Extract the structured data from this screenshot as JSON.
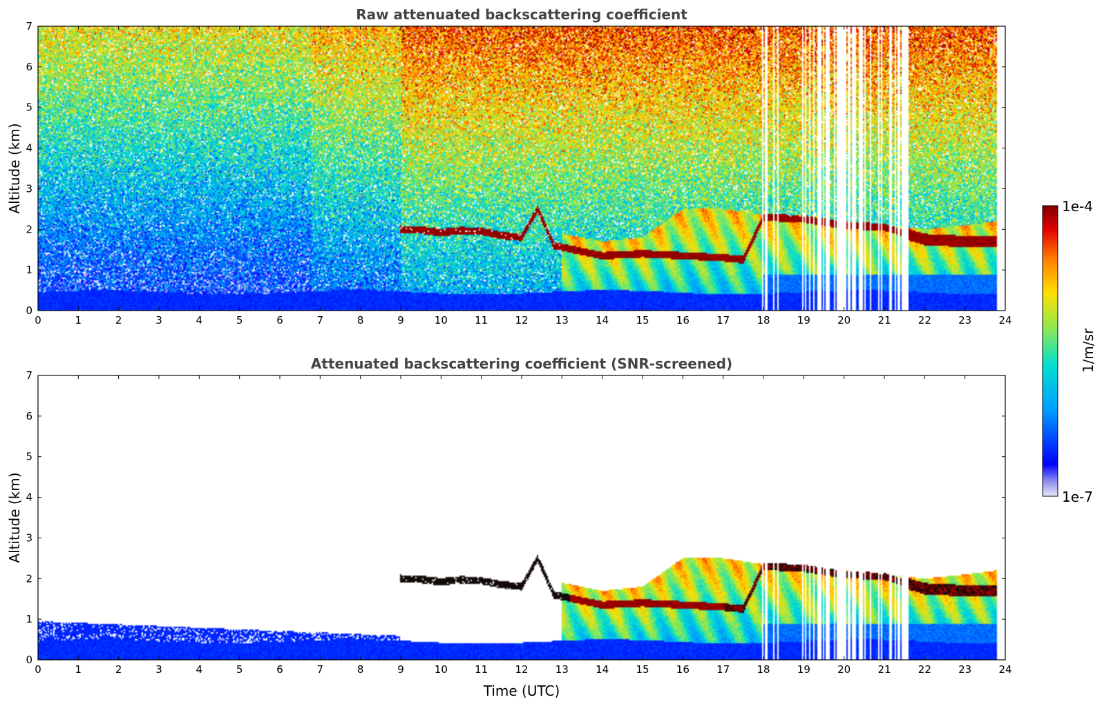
{
  "chart_data": [
    {
      "type": "heatmap",
      "title": "Raw attenuated backscattering coefficient",
      "xlabel": "",
      "ylabel": "Altitude (km)",
      "xlim": [
        0,
        24
      ],
      "ylim": [
        0,
        7
      ],
      "xticks": [
        "0",
        "1",
        "2",
        "3",
        "4",
        "5",
        "6",
        "7",
        "8",
        "9",
        "10",
        "11",
        "12",
        "13",
        "14",
        "15",
        "16",
        "17",
        "18",
        "19",
        "20",
        "21",
        "22",
        "23",
        "24"
      ],
      "yticks": [
        "0",
        "1",
        "2",
        "3",
        "4",
        "5",
        "6",
        "7"
      ],
      "screened": false,
      "features": {
        "elevated_layer": [
          {
            "t": 9.0,
            "z": 2.0
          },
          {
            "t": 9.5,
            "z": 1.98
          },
          {
            "t": 10.0,
            "z": 1.92
          },
          {
            "t": 10.5,
            "z": 1.97
          },
          {
            "t": 11.0,
            "z": 1.95
          },
          {
            "t": 11.5,
            "z": 1.85
          },
          {
            "t": 12.0,
            "z": 1.8
          },
          {
            "t": 12.4,
            "z": 2.5
          },
          {
            "t": 12.8,
            "z": 1.6
          },
          {
            "t": 14.0,
            "z": 1.35
          },
          {
            "t": 15.0,
            "z": 1.4
          },
          {
            "t": 16.0,
            "z": 1.35
          },
          {
            "t": 17.0,
            "z": 1.3
          },
          {
            "t": 17.5,
            "z": 1.25
          },
          {
            "t": 18.0,
            "z": 2.3
          },
          {
            "t": 19.0,
            "z": 2.25
          },
          {
            "t": 20.0,
            "z": 2.1
          },
          {
            "t": 21.0,
            "z": 2.05
          },
          {
            "t": 22.0,
            "z": 1.75
          },
          {
            "t": 23.0,
            "z": 1.7
          }
        ],
        "cloud_tops": [
          {
            "t": 13.0,
            "z": 1.9
          },
          {
            "t": 14.0,
            "z": 1.7
          },
          {
            "t": 15.0,
            "z": 1.8
          },
          {
            "t": 16.0,
            "z": 2.5
          },
          {
            "t": 17.0,
            "z": 2.5
          },
          {
            "t": 18.0,
            "z": 2.35
          },
          {
            "t": 19.0,
            "z": 2.3
          },
          {
            "t": 20.0,
            "z": 2.2
          },
          {
            "t": 21.0,
            "z": 2.1
          },
          {
            "t": 22.0,
            "z": 2.0
          },
          {
            "t": 23.0,
            "z": 2.1
          },
          {
            "t": 23.8,
            "z": 2.2
          }
        ]
      }
    },
    {
      "type": "heatmap",
      "title": "Attenuated backscattering coefficient (SNR-screened)",
      "xlabel": "Time (UTC)",
      "ylabel": "Altitude (km)",
      "xlim": [
        0,
        24
      ],
      "ylim": [
        0,
        7
      ],
      "xticks": [
        "0",
        "1",
        "2",
        "3",
        "4",
        "5",
        "6",
        "7",
        "8",
        "9",
        "10",
        "11",
        "12",
        "13",
        "14",
        "15",
        "16",
        "17",
        "18",
        "19",
        "20",
        "21",
        "22",
        "23",
        "24"
      ],
      "yticks": [
        "0",
        "1",
        "2",
        "3",
        "4",
        "5",
        "6",
        "7"
      ],
      "screened": true
    }
  ],
  "colorbar": {
    "label": "1/m/sr",
    "max_label": "1e-4",
    "min_label": "1e-7",
    "scale": "log",
    "colormap": [
      "#ffffff",
      "#c8c8f0",
      "#0000ff",
      "#00ccff",
      "#00e6c8",
      "#aaee44",
      "#ffdd00",
      "#ff7a00",
      "#e00000",
      "#8b0000"
    ]
  }
}
